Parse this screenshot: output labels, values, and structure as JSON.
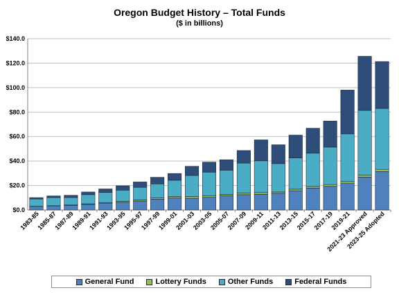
{
  "chart_data": {
    "type": "bar",
    "stacked": true,
    "title": "Oregon Budget History – Total Funds",
    "subtitle": "($ in billions)",
    "xlabel": "",
    "ylabel": "",
    "ylim": [
      0,
      140
    ],
    "yticks": [
      0,
      20,
      40,
      60,
      80,
      100,
      120,
      140
    ],
    "ytick_labels": [
      "$0.0",
      "$20.0",
      "$40.0",
      "$60.0",
      "$80.0",
      "$100.0",
      "$120.0",
      "$140.0"
    ],
    "grid": true,
    "legend_position": "bottom",
    "categories": [
      "1983-85",
      "1985-87",
      "1987-89",
      "1989-91",
      "1991-93",
      "1993-95",
      "1995-97",
      "1997-99",
      "1999-01",
      "2001-03",
      "2003-05",
      "2005-07",
      "2007-09",
      "2009-11",
      "2011-13",
      "2013-15",
      "2015-17",
      "2017-19",
      "2019-21",
      "2021-23 Approved",
      "2023-25 Adopted"
    ],
    "series": [
      {
        "name": "General Fund",
        "color": "#4f81bd",
        "values": [
          2.9,
          3.3,
          3.8,
          4.6,
          5.6,
          6.3,
          7.3,
          8.8,
          9.9,
          9.6,
          10.3,
          11.6,
          12.5,
          12.8,
          13.6,
          15.7,
          17.9,
          19.3,
          21.6,
          26.9,
          31.4
        ]
      },
      {
        "name": "Lottery Funds",
        "color": "#9bbb59",
        "values": [
          0.1,
          0.2,
          0.3,
          0.4,
          0.5,
          0.7,
          0.9,
          1.0,
          1.2,
          1.4,
          1.4,
          1.1,
          1.3,
          1.4,
          1.1,
          1.3,
          1.3,
          1.5,
          1.6,
          1.7,
          1.8
        ]
      },
      {
        "name": "Other Funds",
        "color": "#4bacc6",
        "values": [
          6.0,
          6.6,
          6.1,
          7.5,
          8.3,
          9.2,
          10.3,
          11.5,
          13.2,
          17.2,
          19.2,
          19.8,
          24.5,
          26.0,
          23.2,
          25.5,
          27.2,
          30.6,
          39.0,
          52.8,
          49.8
        ]
      },
      {
        "name": "Federal Funds",
        "color": "#2e4d78",
        "values": [
          1.1,
          1.4,
          1.8,
          2.2,
          2.8,
          3.6,
          4.4,
          5.4,
          5.5,
          7.5,
          8.2,
          8.5,
          10.3,
          17.1,
          15.4,
          18.7,
          20.4,
          21.3,
          35.8,
          44.2,
          38.3
        ]
      }
    ]
  }
}
